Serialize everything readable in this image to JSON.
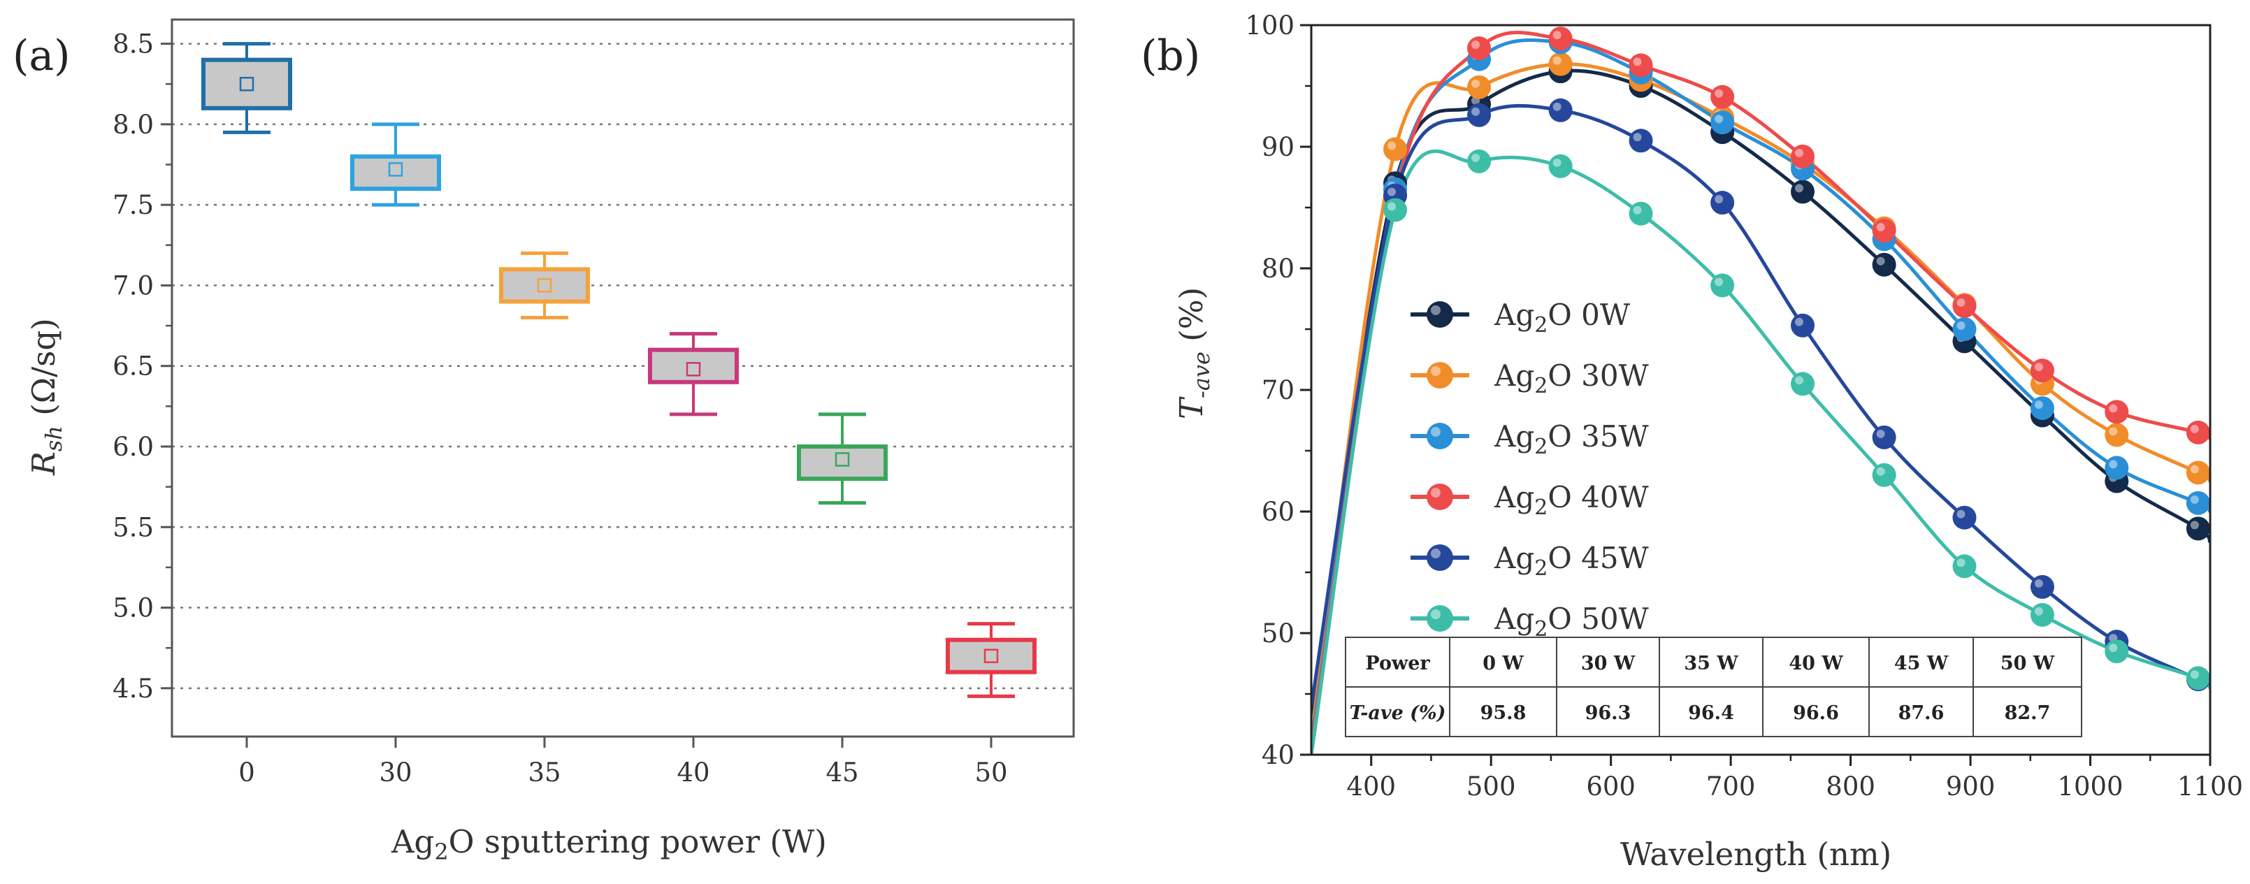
{
  "chart_data": [
    {
      "panel": "(a)",
      "type": "box",
      "title": "",
      "xlabel": "Ag₂O sputtering power (W)",
      "ylabel": "R_sh (Ω/sq)",
      "ylabel_main": "R",
      "ylabel_sub": "sh",
      "ylabel_rest": " (Ω/sq)",
      "xlabel_pre": "Ag",
      "xlabel_sub": "2",
      "xlabel_post": "O sputtering power (W)",
      "ylim": [
        4.2,
        8.65
      ],
      "yticks": [
        "4.5",
        "5.0",
        "5.5",
        "6.0",
        "6.5",
        "7.0",
        "7.5",
        "8.0",
        "8.5"
      ],
      "grid": "horizontal dotted",
      "categories": [
        "0",
        "30",
        "35",
        "40",
        "45",
        "50"
      ],
      "boxes": [
        {
          "category": "0",
          "min": 7.95,
          "q1": 8.1,
          "q3": 8.4,
          "max": 8.5,
          "mean": 8.25,
          "color": "#1f6fa8"
        },
        {
          "category": "30",
          "min": 7.5,
          "q1": 7.6,
          "q3": 7.8,
          "max": 8.0,
          "mean": 7.72,
          "color": "#2ea3e0"
        },
        {
          "category": "35",
          "min": 6.8,
          "q1": 6.9,
          "q3": 7.1,
          "max": 7.2,
          "mean": 7.0,
          "color": "#f5a23c"
        },
        {
          "category": "40",
          "min": 6.2,
          "q1": 6.4,
          "q3": 6.6,
          "max": 6.7,
          "mean": 6.48,
          "color": "#c8387c"
        },
        {
          "category": "45",
          "min": 5.65,
          "q1": 5.8,
          "q3": 6.0,
          "max": 6.2,
          "mean": 5.92,
          "color": "#3aa65a"
        },
        {
          "category": "50",
          "min": 4.45,
          "q1": 4.6,
          "q3": 4.8,
          "max": 4.9,
          "mean": 4.7,
          "color": "#e8394a"
        }
      ]
    },
    {
      "panel": "(b)",
      "type": "line",
      "title": "",
      "xlabel": "Wavelength (nm)",
      "ylabel": "T-ave (%)",
      "ylabel_main": "T",
      "ylabel_sub": "-ave",
      "ylabel_rest": " (%)",
      "xlim": [
        350,
        1100
      ],
      "ylim": [
        40,
        100
      ],
      "xticks": [
        "400",
        "500",
        "600",
        "700",
        "800",
        "900",
        "1000",
        "1100"
      ],
      "yticks": [
        "40",
        "50",
        "60",
        "70",
        "80",
        "90",
        "100"
      ],
      "grid": "none",
      "legend": "center-left",
      "series": [
        {
          "name": "Ag₂O 0W",
          "label_pre": "Ag",
          "label_sub": "2",
          "label_post": "O 0W",
          "color": "#132a4a",
          "x": [
            350,
            420,
            490,
            558,
            625,
            693,
            760,
            828,
            895,
            960,
            1022,
            1090,
            1100
          ],
          "y": [
            42.5,
            87,
            93.5,
            96.2,
            95.0,
            91.2,
            86.3,
            80.3,
            74.0,
            67.9,
            62.5,
            58.6,
            57.5
          ]
        },
        {
          "name": "Ag₂O 30W",
          "label_pre": "Ag",
          "label_sub": "2",
          "label_post": "O 30W",
          "color": "#f18c2a",
          "x": [
            350,
            420,
            490,
            558,
            625,
            693,
            760,
            828,
            895,
            960,
            1022,
            1090,
            1100
          ],
          "y": [
            41.5,
            89.8,
            94.9,
            96.8,
            95.5,
            92.4,
            88.6,
            83.3,
            77.0,
            70.5,
            66.3,
            63.2,
            62.5
          ]
        },
        {
          "name": "Ag₂O 35W",
          "label_pre": "Ag",
          "label_sub": "2",
          "label_post": "O 35W",
          "color": "#2a8fd6",
          "x": [
            350,
            420,
            490,
            558,
            625,
            693,
            760,
            828,
            895,
            960,
            1022,
            1090,
            1100
          ],
          "y": [
            41,
            86.5,
            97.2,
            98.6,
            96.1,
            92.0,
            88.2,
            82.4,
            75.0,
            68.5,
            63.6,
            60.7,
            60.0
          ]
        },
        {
          "name": "Ag₂O 40W",
          "label_pre": "Ag",
          "label_sub": "2",
          "label_post": "O 40W",
          "color": "#ee4b4b",
          "x": [
            350,
            420,
            490,
            558,
            625,
            693,
            760,
            828,
            895,
            960,
            1022,
            1090,
            1100
          ],
          "y": [
            40.5,
            86.0,
            98.1,
            98.9,
            96.7,
            94.1,
            89.2,
            83.1,
            76.9,
            71.6,
            68.2,
            66.5,
            66.0
          ]
        },
        {
          "name": "Ag₂O 45W",
          "label_pre": "Ag",
          "label_sub": "2",
          "label_post": "O 45W",
          "color": "#25479c",
          "x": [
            350,
            420,
            490,
            558,
            625,
            693,
            760,
            828,
            895,
            960,
            1022,
            1090,
            1100
          ],
          "y": [
            44,
            86.0,
            92.6,
            93.0,
            90.5,
            85.4,
            75.3,
            66.1,
            59.5,
            53.8,
            49.3,
            46.2,
            45.5
          ]
        },
        {
          "name": "Ag₂O 50W",
          "label_pre": "Ag",
          "label_sub": "2",
          "label_post": "O 50W",
          "color": "#3dbda8",
          "x": [
            350,
            420,
            490,
            558,
            625,
            693,
            760,
            828,
            895,
            960,
            1022,
            1090,
            1100
          ],
          "y": [
            40,
            84.8,
            88.8,
            88.4,
            84.5,
            78.6,
            70.5,
            63.0,
            55.5,
            51.5,
            48.5,
            46.3,
            45.5
          ]
        }
      ],
      "table": {
        "header": [
          "Power",
          "0 W",
          "30 W",
          "35 W",
          "40 W",
          "45 W",
          "50 W"
        ],
        "row": [
          "T-ave (%)",
          "95.8",
          "96.3",
          "96.4",
          "96.6",
          "87.6",
          "82.7"
        ]
      }
    }
  ]
}
